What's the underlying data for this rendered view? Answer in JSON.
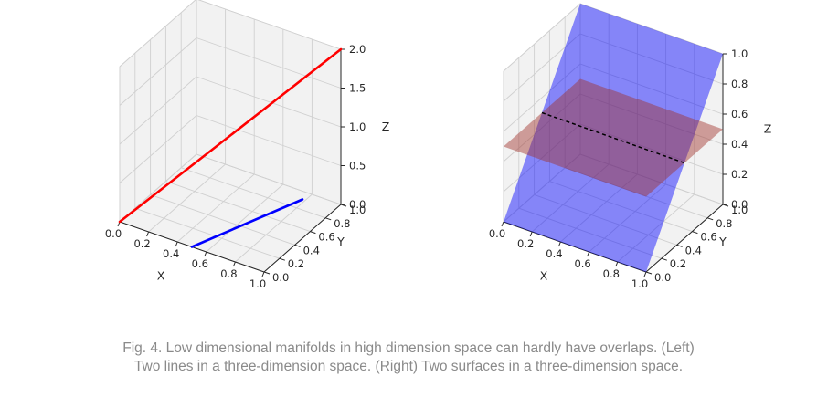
{
  "chart_data": [
    {
      "type": "line3d",
      "xlabel": "X",
      "ylabel": "Y",
      "zlabel": "Z",
      "xlim": [
        0,
        1
      ],
      "ylim": [
        0,
        1
      ],
      "zlim": [
        0,
        2
      ],
      "x_ticks": [
        "0.0",
        "0.2",
        "0.4",
        "0.6",
        "0.8",
        "1.0"
      ],
      "y_ticks": [
        "0.0",
        "0.2",
        "0.4",
        "0.6",
        "0.8",
        "1.0"
      ],
      "z_ticks": [
        "0.0",
        "0.5",
        "1.0",
        "1.5",
        "2.0"
      ],
      "series": [
        {
          "color": "#ff0000",
          "points": [
            [
              0,
              0,
              0
            ],
            [
              1,
              1,
              2
            ]
          ]
        },
        {
          "color": "#0000ff",
          "points": [
            [
              0.5,
              0,
              0
            ],
            [
              1,
              0.5,
              0.5
            ]
          ]
        }
      ]
    },
    {
      "type": "surface3d",
      "xlabel": "X",
      "ylabel": "Y",
      "zlabel": "Z",
      "xlim": [
        0,
        1
      ],
      "ylim": [
        0,
        1
      ],
      "zlim": [
        0,
        1
      ],
      "x_ticks": [
        "0.0",
        "0.2",
        "0.4",
        "0.6",
        "0.8",
        "1.0"
      ],
      "y_ticks": [
        "0.0",
        "0.2",
        "0.4",
        "0.6",
        "0.8",
        "1.0"
      ],
      "z_ticks": [
        "0.0",
        "0.2",
        "0.4",
        "0.6",
        "0.8",
        "1.0"
      ],
      "surfaces": [
        {
          "color": "#0000ff",
          "opacity": 0.45,
          "corners": [
            [
              0,
              0,
              0
            ],
            [
              1,
              0,
              0
            ],
            [
              1,
              1,
              1
            ],
            [
              0,
              1,
              1
            ]
          ]
        },
        {
          "color": "#a0302a",
          "opacity": 0.45,
          "corners": [
            [
              0,
              0,
              0.5
            ],
            [
              1,
              0,
              0.5
            ],
            [
              1,
              1,
              0.5
            ],
            [
              0,
              1,
              0.5
            ]
          ]
        }
      ],
      "intersection": {
        "color": "#000000",
        "style": "dashed",
        "points": [
          [
            0,
            0.5,
            0.5
          ],
          [
            1,
            0.5,
            0.5
          ]
        ]
      }
    }
  ],
  "caption": "Fig. 4. Low dimensional manifolds in high dimension space can hardly have overlaps. (Left) Two lines in a three-dimension space. (Right) Two surfaces in a three-dimension space."
}
